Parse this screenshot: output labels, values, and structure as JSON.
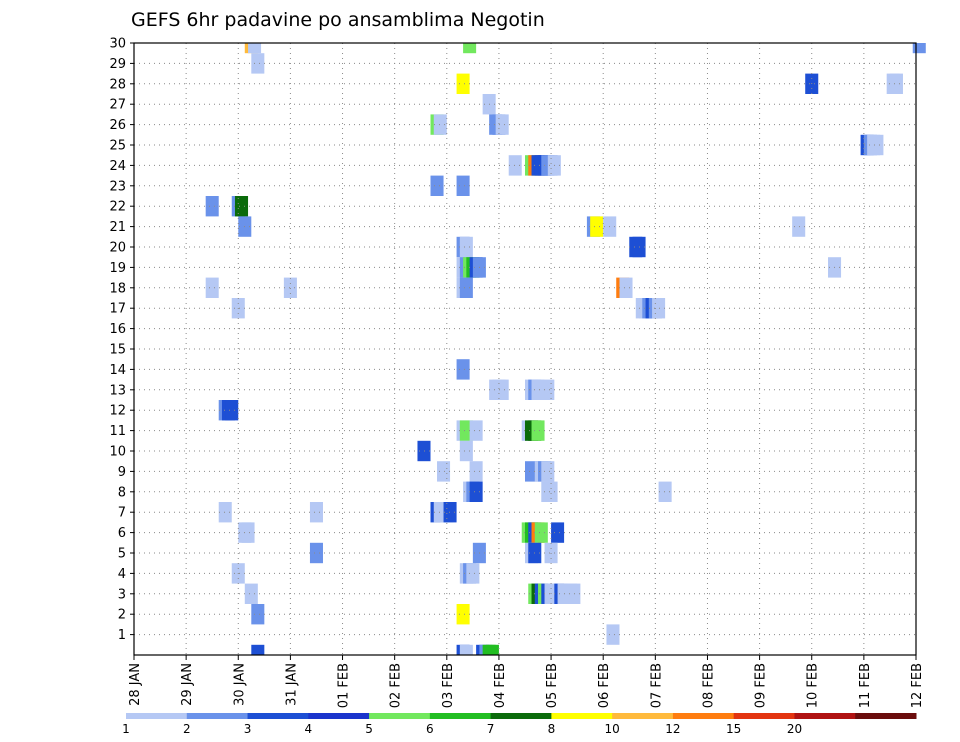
{
  "chart_data": {
    "type": "heatmap",
    "title": "GEFS 6hr padavine po ansamblima Negotin",
    "xlabel": "",
    "ylabel": "",
    "x_ticks": [
      "28 JAN",
      "29 JAN",
      "30 JAN",
      "31 JAN",
      "01 FEB",
      "02 FEB",
      "03 FEB",
      "04 FEB",
      "05 FEB",
      "06 FEB",
      "07 FEB",
      "08 FEB",
      "09 FEB",
      "10 FEB",
      "11 FEB",
      "12 FEB"
    ],
    "x_range_days": [
      0,
      15
    ],
    "x_step_days": 0.25,
    "y_ticks": [
      "1",
      "2",
      "3",
      "4",
      "5",
      "6",
      "7",
      "8",
      "9",
      "10",
      "11",
      "12",
      "13",
      "14",
      "15",
      "16",
      "17",
      "18",
      "19",
      "20",
      "21",
      "22",
      "23",
      "24",
      "25",
      "26",
      "27",
      "28",
      "29",
      "30"
    ],
    "y_range": [
      0,
      30
    ],
    "grid": true,
    "colorbar": {
      "labels": [
        "1",
        "2",
        "3",
        "4",
        "5",
        "6",
        "7",
        "8",
        "10",
        "12",
        "15",
        "20"
      ],
      "colors": [
        "#b5c8f4",
        "#6a92ea",
        "#1d4fd4",
        "#1a34cc",
        "#72e85e",
        "#22be22",
        "#0b6b0b",
        "#ffff00",
        "#ffba3c",
        "#ff7d0f",
        "#e33410",
        "#b01212",
        "#6a0c0c"
      ]
    },
    "cells": [
      {
        "m": 30,
        "t": 8.5,
        "v": "#ffba3c"
      },
      {
        "m": 30,
        "t": 8.75,
        "v": "#b5c8f4"
      },
      {
        "m": 30,
        "t": 25.25,
        "v": "#72e85e"
      },
      {
        "m": 30,
        "t": 59.75,
        "v": "#6a92ea"
      },
      {
        "m": 29,
        "t": 9.0,
        "v": "#b5c8f4"
      },
      {
        "m": 28,
        "t": 24.75,
        "v": "#ffff00"
      },
      {
        "m": 28,
        "t": 51.5,
        "v": "#1d4fd4"
      },
      {
        "m": 28,
        "t": 57.75,
        "v": "#b5c8f4"
      },
      {
        "m": 28,
        "t": 58.0,
        "v": "#b5c8f4"
      },
      {
        "m": 27,
        "t": 26.75,
        "v": "#b5c8f4"
      },
      {
        "m": 26,
        "t": 22.75,
        "v": "#72e85e"
      },
      {
        "m": 26,
        "t": 23.0,
        "v": "#b5c8f4"
      },
      {
        "m": 26,
        "t": 27.25,
        "v": "#6a92ea"
      },
      {
        "m": 26,
        "t": 27.5,
        "v": "#6a92ea"
      },
      {
        "m": 26,
        "t": 27.75,
        "v": "#b5c8f4"
      },
      {
        "m": 25,
        "t": 55.75,
        "v": "#1d4fd4"
      },
      {
        "m": 25,
        "t": 56.0,
        "v": "#6a92ea"
      },
      {
        "m": 25,
        "t": 56.25,
        "v": "#b5c8f4"
      },
      {
        "m": 25,
        "t": 56.5,
        "v": "#b5c8f4"
      },
      {
        "m": 24,
        "t": 28.75,
        "v": "#b5c8f4"
      },
      {
        "m": 24,
        "t": 30.0,
        "v": "#72e85e"
      },
      {
        "m": 24,
        "t": 30.25,
        "v": "#ff7d0f"
      },
      {
        "m": 24,
        "t": 30.5,
        "v": "#1d4fd4"
      },
      {
        "m": 24,
        "t": 30.75,
        "v": "#1d4fd4"
      },
      {
        "m": 24,
        "t": 31.0,
        "v": "#1d4fd4"
      },
      {
        "m": 24,
        "t": 31.25,
        "v": "#6a92ea"
      },
      {
        "m": 24,
        "t": 31.5,
        "v": "#6a92ea"
      },
      {
        "m": 24,
        "t": 31.75,
        "v": "#b5c8f4"
      },
      {
        "m": 23,
        "t": 22.75,
        "v": "#6a92ea"
      },
      {
        "m": 23,
        "t": 24.75,
        "v": "#6a92ea"
      },
      {
        "m": 22,
        "t": 5.5,
        "v": "#6a92ea"
      },
      {
        "m": 22,
        "t": 7.5,
        "v": "#6a92ea"
      },
      {
        "m": 22,
        "t": 7.75,
        "v": "#0b6b0b"
      },
      {
        "m": 21,
        "t": 8.0,
        "v": "#6a92ea"
      },
      {
        "m": 21,
        "t": 34.75,
        "v": "#6a92ea"
      },
      {
        "m": 21,
        "t": 35.0,
        "v": "#ffff00"
      },
      {
        "m": 21,
        "t": 36.0,
        "v": "#b5c8f4"
      },
      {
        "m": 21,
        "t": 50.5,
        "v": "#b5c8f4"
      },
      {
        "m": 20,
        "t": 24.75,
        "v": "#6a92ea"
      },
      {
        "m": 20,
        "t": 25.0,
        "v": "#b5c8f4"
      },
      {
        "m": 20,
        "t": 38.0,
        "v": "#1d4fd4"
      },
      {
        "m": 20,
        "t": 38.25,
        "v": "#1d4fd4"
      },
      {
        "m": 19,
        "t": 24.75,
        "v": "#b5c8f4"
      },
      {
        "m": 19,
        "t": 25.0,
        "v": "#6a92ea"
      },
      {
        "m": 19,
        "t": 25.25,
        "v": "#72e85e"
      },
      {
        "m": 19,
        "t": 25.5,
        "v": "#22be22"
      },
      {
        "m": 19,
        "t": 25.75,
        "v": "#1d4fd4"
      },
      {
        "m": 19,
        "t": 26.0,
        "v": "#6a92ea"
      },
      {
        "m": 19,
        "t": 53.25,
        "v": "#b5c8f4"
      },
      {
        "m": 18,
        "t": 5.5,
        "v": "#b5c8f4"
      },
      {
        "m": 18,
        "t": 11.5,
        "v": "#b5c8f4"
      },
      {
        "m": 18,
        "t": 24.75,
        "v": "#b5c8f4"
      },
      {
        "m": 18,
        "t": 25.0,
        "v": "#6a92ea"
      },
      {
        "m": 18,
        "t": 37.0,
        "v": "#ff7d0f"
      },
      {
        "m": 18,
        "t": 37.25,
        "v": "#b5c8f4"
      },
      {
        "m": 17,
        "t": 7.5,
        "v": "#b5c8f4"
      },
      {
        "m": 17,
        "t": 38.5,
        "v": "#b5c8f4"
      },
      {
        "m": 17,
        "t": 38.75,
        "v": "#b5c8f4"
      },
      {
        "m": 17,
        "t": 39.0,
        "v": "#6a92ea"
      },
      {
        "m": 17,
        "t": 39.25,
        "v": "#1d4fd4"
      },
      {
        "m": 17,
        "t": 39.5,
        "v": "#6a92ea"
      },
      {
        "m": 17,
        "t": 39.75,
        "v": "#b5c8f4"
      },
      {
        "m": 14,
        "t": 24.75,
        "v": "#6a92ea"
      },
      {
        "m": 13,
        "t": 27.25,
        "v": "#b5c8f4"
      },
      {
        "m": 13,
        "t": 27.5,
        "v": "#b5c8f4"
      },
      {
        "m": 13,
        "t": 27.75,
        "v": "#b5c8f4"
      },
      {
        "m": 13,
        "t": 30.0,
        "v": "#b5c8f4"
      },
      {
        "m": 13,
        "t": 30.25,
        "v": "#6a92ea"
      },
      {
        "m": 13,
        "t": 30.5,
        "v": "#b5c8f4"
      },
      {
        "m": 13,
        "t": 31.25,
        "v": "#b5c8f4"
      },
      {
        "m": 12,
        "t": 6.5,
        "v": "#6a92ea"
      },
      {
        "m": 12,
        "t": 6.75,
        "v": "#1d4fd4"
      },
      {
        "m": 12,
        "t": 7.0,
        "v": "#1d4fd4"
      },
      {
        "m": 11,
        "t": 24.75,
        "v": "#b5c8f4"
      },
      {
        "m": 11,
        "t": 25.0,
        "v": "#72e85e"
      },
      {
        "m": 11,
        "t": 25.75,
        "v": "#b5c8f4"
      },
      {
        "m": 11,
        "t": 29.75,
        "v": "#b5c8f4"
      },
      {
        "m": 11,
        "t": 30.0,
        "v": "#0b6b0b"
      },
      {
        "m": 11,
        "t": 30.25,
        "v": "#0b6b0b"
      },
      {
        "m": 11,
        "t": 30.5,
        "v": "#72e85e"
      },
      {
        "m": 10,
        "t": 21.75,
        "v": "#1d4fd4"
      },
      {
        "m": 10,
        "t": 25.0,
        "v": "#b5c8f4"
      },
      {
        "m": 9,
        "t": 23.25,
        "v": "#b5c8f4"
      },
      {
        "m": 9,
        "t": 25.75,
        "v": "#b5c8f4"
      },
      {
        "m": 9,
        "t": 30.0,
        "v": "#6a92ea"
      },
      {
        "m": 9,
        "t": 30.75,
        "v": "#b5c8f4"
      },
      {
        "m": 9,
        "t": 31.0,
        "v": "#6a92ea"
      },
      {
        "m": 9,
        "t": 31.25,
        "v": "#b5c8f4"
      },
      {
        "m": 8,
        "t": 25.25,
        "v": "#b5c8f4"
      },
      {
        "m": 8,
        "t": 25.5,
        "v": "#6a92ea"
      },
      {
        "m": 8,
        "t": 25.75,
        "v": "#1d4fd4"
      },
      {
        "m": 8,
        "t": 31.25,
        "v": "#b5c8f4"
      },
      {
        "m": 8,
        "t": 31.5,
        "v": "#b5c8f4"
      },
      {
        "m": 8,
        "t": 40.25,
        "v": "#b5c8f4"
      },
      {
        "m": 7,
        "t": 6.5,
        "v": "#b5c8f4"
      },
      {
        "m": 7,
        "t": 13.5,
        "v": "#b5c8f4"
      },
      {
        "m": 7,
        "t": 22.75,
        "v": "#1d4fd4"
      },
      {
        "m": 7,
        "t": 23.0,
        "v": "#b5c8f4"
      },
      {
        "m": 7,
        "t": 23.5,
        "v": "#b5c8f4"
      },
      {
        "m": 7,
        "t": 23.75,
        "v": "#1d4fd4"
      },
      {
        "m": 6,
        "t": 8.0,
        "v": "#b5c8f4"
      },
      {
        "m": 6,
        "t": 8.25,
        "v": "#b5c8f4"
      },
      {
        "m": 6,
        "t": 29.75,
        "v": "#72e85e"
      },
      {
        "m": 6,
        "t": 30.0,
        "v": "#22be22"
      },
      {
        "m": 6,
        "t": 30.25,
        "v": "#1d4fd4"
      },
      {
        "m": 6,
        "t": 30.5,
        "v": "#ff7d0f"
      },
      {
        "m": 6,
        "t": 30.75,
        "v": "#72e85e"
      },
      {
        "m": 6,
        "t": 32.0,
        "v": "#1d4fd4"
      },
      {
        "m": 5,
        "t": 13.5,
        "v": "#6a92ea"
      },
      {
        "m": 5,
        "t": 26.0,
        "v": "#6a92ea"
      },
      {
        "m": 5,
        "t": 30.0,
        "v": "#b5c8f4"
      },
      {
        "m": 5,
        "t": 30.25,
        "v": "#1d4fd4"
      },
      {
        "m": 5,
        "t": 31.5,
        "v": "#b5c8f4"
      },
      {
        "m": 4,
        "t": 7.5,
        "v": "#b5c8f4"
      },
      {
        "m": 4,
        "t": 25.0,
        "v": "#b5c8f4"
      },
      {
        "m": 4,
        "t": 25.25,
        "v": "#6a92ea"
      },
      {
        "m": 4,
        "t": 25.5,
        "v": "#b5c8f4"
      },
      {
        "m": 3,
        "t": 8.5,
        "v": "#b5c8f4"
      },
      {
        "m": 3,
        "t": 30.25,
        "v": "#72e85e"
      },
      {
        "m": 3,
        "t": 30.5,
        "v": "#0b6b0b"
      },
      {
        "m": 3,
        "t": 30.75,
        "v": "#1d4fd4"
      },
      {
        "m": 3,
        "t": 31.0,
        "v": "#72e85e"
      },
      {
        "m": 3,
        "t": 31.25,
        "v": "#1d4fd4"
      },
      {
        "m": 3,
        "t": 31.5,
        "v": "#b5c8f4"
      },
      {
        "m": 3,
        "t": 31.75,
        "v": "#b5c8f4"
      },
      {
        "m": 3,
        "t": 32.0,
        "v": "#b5c8f4"
      },
      {
        "m": 3,
        "t": 32.25,
        "v": "#1d4fd4"
      },
      {
        "m": 3,
        "t": 32.5,
        "v": "#b5c8f4"
      },
      {
        "m": 3,
        "t": 33.0,
        "v": "#b5c8f4"
      },
      {
        "m": 3,
        "t": 33.25,
        "v": "#b5c8f4"
      },
      {
        "m": 2,
        "t": 9.0,
        "v": "#6a92ea"
      },
      {
        "m": 2,
        "t": 24.75,
        "v": "#ffff00"
      },
      {
        "m": 1,
        "t": 36.25,
        "v": "#b5c8f4"
      },
      {
        "m": 0,
        "t": 9.0,
        "v": "#1d4fd4"
      },
      {
        "m": 0,
        "t": 24.75,
        "v": "#1d4fd4"
      },
      {
        "m": 0,
        "t": 25.0,
        "v": "#b5c8f4"
      },
      {
        "m": 0,
        "t": 26.25,
        "v": "#1d4fd4"
      },
      {
        "m": 0,
        "t": 26.5,
        "v": "#6a92ea"
      },
      {
        "m": 0,
        "t": 26.75,
        "v": "#22be22"
      },
      {
        "m": 0,
        "t": 27.0,
        "v": "#22be22"
      }
    ]
  }
}
